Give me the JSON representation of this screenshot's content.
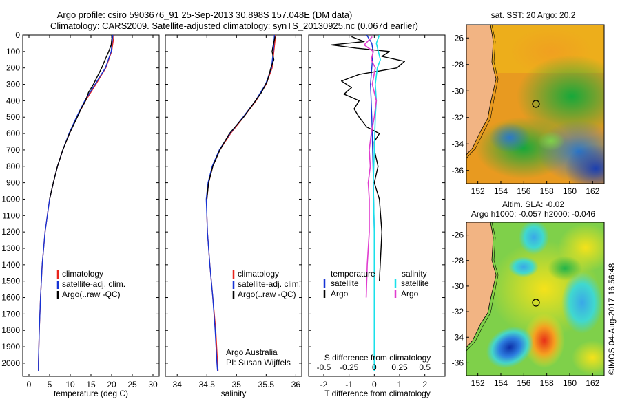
{
  "title_line1": "Argo profile: csiro 5903676_91 25-Sep-2013 30.898S 157.048E (DM data)",
  "title_line2": "Climatology: CARS2009. Satellite-adjusted climatology: synTS_20130925.nc (0.067d earlier)",
  "side_label": "©IMOS 04-Aug-2017 16:56:48",
  "colors": {
    "climatology": "#e8241c",
    "satellite": "#1633d4",
    "argo": "#000000",
    "sal_satellite": "#19e0ea",
    "sal_argo": "#e03ccf",
    "land": "#f2b483"
  },
  "chart_data": [
    {
      "id": "temperature",
      "type": "line",
      "xlabel": "temperature (deg C)",
      "ylabel": "",
      "xlim": [
        -1.5,
        31.5
      ],
      "ylim": [
        2080,
        0
      ],
      "xticks": [
        0,
        5,
        10,
        15,
        20,
        25,
        30
      ],
      "yticks": [
        0,
        100,
        200,
        300,
        400,
        500,
        600,
        700,
        800,
        900,
        1000,
        1100,
        1200,
        1300,
        1400,
        1500,
        1600,
        1700,
        1800,
        1900,
        2000
      ],
      "legend": [
        "climatology",
        "satellite-adj. clim.",
        "Argo(..raw -QC)"
      ],
      "series": [
        {
          "name": "climatology",
          "depth": [
            0,
            100,
            200,
            300,
            400,
            500,
            600,
            700,
            800,
            900,
            1000,
            1200,
            1400,
            1600,
            1800,
            2000,
            2050
          ],
          "values": [
            20.6,
            20.0,
            18.6,
            16.2,
            13.7,
            11.6,
            9.8,
            8.2,
            6.9,
            5.9,
            5.0,
            3.9,
            3.2,
            2.8,
            2.5,
            2.3,
            2.3
          ]
        },
        {
          "name": "satellite-adj. clim.",
          "depth": [
            0,
            100,
            200,
            300,
            400,
            500,
            600,
            700,
            800,
            900,
            1000,
            1200,
            1400,
            1600,
            1800,
            2000,
            2050
          ],
          "values": [
            20.3,
            19.9,
            18.5,
            16.0,
            13.5,
            11.5,
            9.7,
            8.2,
            6.9,
            5.9,
            5.0,
            3.9,
            3.2,
            2.8,
            2.5,
            2.3,
            2.3
          ]
        },
        {
          "name": "Argo(..raw -QC)",
          "depth": [
            10,
            60,
            100,
            140,
            200,
            250,
            300,
            350,
            400,
            450,
            500,
            600,
            700,
            800,
            900,
            1000
          ],
          "values": [
            20.1,
            19.9,
            19.3,
            18.6,
            17.6,
            16.6,
            15.6,
            14.4,
            13.7,
            12.6,
            11.7,
            9.8,
            8.2,
            6.9,
            5.9,
            5.0
          ]
        }
      ]
    },
    {
      "id": "salinity",
      "type": "line",
      "xlabel": "salinity",
      "ylabel": "",
      "xlim": [
        33.8,
        36.1
      ],
      "ylim": [
        2080,
        0
      ],
      "xticks": [
        34,
        34.5,
        35,
        35.5,
        36
      ],
      "legend": [
        "climatology",
        "satellite-adj. clim.",
        "Argo(..raw -QC)"
      ],
      "annotation": [
        "Argo Australia",
        "PI: Susan Wijffels"
      ],
      "series": [
        {
          "name": "climatology",
          "depth": [
            0,
            100,
            200,
            300,
            400,
            500,
            600,
            700,
            800,
            900,
            1000,
            1100,
            1200,
            1400,
            1600,
            1800,
            2000,
            2050
          ],
          "values": [
            35.66,
            35.63,
            35.6,
            35.5,
            35.33,
            35.12,
            34.9,
            34.72,
            34.6,
            34.53,
            34.5,
            34.5,
            34.51,
            34.55,
            34.6,
            34.65,
            34.68,
            34.69
          ]
        },
        {
          "name": "satellite-adj. clim.",
          "depth": [
            0,
            100,
            200,
            300,
            400,
            500,
            600,
            700,
            800,
            900,
            1000,
            1100,
            1200,
            1400,
            1600,
            1800,
            2000,
            2050
          ],
          "values": [
            35.64,
            35.62,
            35.59,
            35.49,
            35.32,
            35.11,
            34.89,
            34.71,
            34.59,
            34.52,
            34.49,
            34.5,
            34.51,
            34.55,
            34.6,
            34.64,
            34.67,
            34.68
          ]
        },
        {
          "name": "Argo(..raw -QC)",
          "depth": [
            10,
            60,
            100,
            150,
            200,
            280,
            350,
            420,
            500,
            600,
            700,
            800,
            900,
            1000
          ],
          "values": [
            35.65,
            35.62,
            35.6,
            35.63,
            35.58,
            35.52,
            35.42,
            35.28,
            35.12,
            34.88,
            34.72,
            34.6,
            34.53,
            34.5
          ]
        }
      ]
    },
    {
      "id": "differences",
      "type": "line",
      "xlabel": "T difference from climatology",
      "xlabel_top": "S difference from climatology",
      "xlim": [
        -2.6,
        2.8
      ],
      "ylim": [
        2080,
        0
      ],
      "xticks": [
        -2,
        -1,
        0,
        1,
        2
      ],
      "xticks_salinity": [
        -0.5,
        -0.25,
        0,
        0.25,
        0.5
      ],
      "xticklabels_salinity": [
        "-0.5",
        "-0.25",
        "0",
        "0.25",
        "0.5"
      ],
      "legend_temperature_title": "temperature",
      "legend_salinity_title": "salinity",
      "legend_temperature": [
        "satellite",
        "Argo"
      ],
      "legend_salinity": [
        "satellite",
        "Argo"
      ],
      "series": [
        {
          "name": "temperature satellite",
          "depth": [
            0,
            50,
            100,
            200,
            300,
            500,
            800,
            1200,
            1600,
            2050
          ],
          "values": [
            -0.3,
            -0.1,
            -0.05,
            -0.1,
            -0.15,
            -0.1,
            -0.05,
            0,
            0,
            0
          ]
        },
        {
          "name": "temperature Argo",
          "depth": [
            10,
            40,
            60,
            80,
            100,
            130,
            160,
            200,
            240,
            280,
            320,
            360,
            400,
            450,
            500,
            560,
            600,
            650,
            700,
            800,
            900,
            1000,
            1200,
            1500
          ],
          "values": [
            -0.9,
            -0.4,
            -1.7,
            -0.7,
            0.6,
            0.3,
            1.2,
            0.9,
            -0.6,
            -1.3,
            -0.9,
            -1.2,
            -0.6,
            -0.8,
            -0.6,
            -0.3,
            0.2,
            0,
            0,
            0.15,
            0,
            0.2,
            0.3,
            0.2
          ]
        },
        {
          "name": "salinity satellite",
          "depth": [
            0,
            50,
            100,
            150,
            200,
            300,
            400,
            500,
            700,
            900,
            1200,
            1600,
            2050
          ],
          "values": [
            0.05,
            0.02,
            0.04,
            0.06,
            0.03,
            0.01,
            0.02,
            0.01,
            0,
            -0.01,
            0,
            0,
            0
          ]
        },
        {
          "name": "salinity Argo",
          "depth": [
            10,
            60,
            100,
            150,
            200,
            300,
            400,
            500,
            600,
            700,
            800,
            900,
            1000,
            1200,
            1400,
            1600
          ],
          "values": [
            -0.02,
            -0.1,
            -0.01,
            -0.03,
            0.01,
            -0.02,
            0.02,
            0,
            -0.03,
            -0.05,
            -0.04,
            -0.06,
            -0.05,
            -0.05,
            -0.07,
            -0.08
          ]
        }
      ]
    },
    {
      "id": "sst-map",
      "type": "heatmap",
      "title": "sat. SST: 20 Argo: 20.2",
      "xlim": [
        151,
        163
      ],
      "ylim": [
        -37,
        -25
      ],
      "xticks": [
        152,
        154,
        156,
        158,
        160,
        162
      ],
      "yticks": [
        -26,
        -28,
        -30,
        -32,
        -34,
        -36
      ],
      "argo_position": [
        157.048,
        -30.898
      ]
    },
    {
      "id": "sla-map",
      "type": "heatmap",
      "title_line1": "Altim. SLA: -0.02",
      "title_line2": "Argo h1000: -0.057 h2000: -0.046",
      "xlim": [
        151,
        163
      ],
      "ylim": [
        -37,
        -25
      ],
      "xticks": [
        152,
        154,
        156,
        158,
        160,
        162
      ],
      "yticks": [
        -26,
        -28,
        -30,
        -32,
        -34,
        -36
      ],
      "argo_position": [
        157.048,
        -30.898
      ]
    }
  ]
}
